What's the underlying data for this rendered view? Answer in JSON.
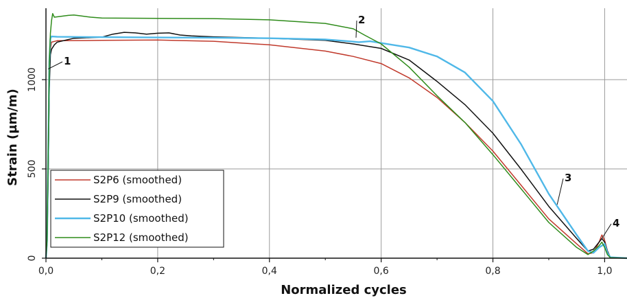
{
  "chart_data": {
    "type": "line",
    "xlabel": "Normalized cycles",
    "ylabel": "Strain (µm/m)",
    "xlim": [
      0,
      1.04
    ],
    "ylim": [
      0,
      1400
    ],
    "x_ticks": [
      "0,0",
      "0,2",
      "0,4",
      "0,6",
      "0,8",
      "1,0"
    ],
    "y_ticks": [
      "0",
      "500",
      "1000"
    ],
    "grid": true,
    "legend_position": "bottom-left",
    "series": [
      {
        "name": "S2P6 (smoothed)",
        "color": "#c0392b",
        "points": [
          [
            0.0,
            0
          ],
          [
            0.002,
            100
          ],
          [
            0.004,
            500
          ],
          [
            0.006,
            1000
          ],
          [
            0.008,
            1170
          ],
          [
            0.01,
            1210
          ],
          [
            0.02,
            1218
          ],
          [
            0.1,
            1220
          ],
          [
            0.2,
            1222
          ],
          [
            0.3,
            1215
          ],
          [
            0.4,
            1195
          ],
          [
            0.5,
            1160
          ],
          [
            0.55,
            1130
          ],
          [
            0.6,
            1090
          ],
          [
            0.65,
            1010
          ],
          [
            0.7,
            900
          ],
          [
            0.75,
            760
          ],
          [
            0.8,
            600
          ],
          [
            0.85,
            410
          ],
          [
            0.9,
            220
          ],
          [
            0.95,
            80
          ],
          [
            0.97,
            25
          ],
          [
            0.98,
            30
          ],
          [
            0.985,
            60
          ],
          [
            0.99,
            90
          ],
          [
            0.995,
            130
          ],
          [
            1.0,
            100
          ],
          [
            1.005,
            40
          ],
          [
            1.01,
            5
          ],
          [
            1.04,
            0
          ]
        ]
      },
      {
        "name": "S2P9 (smoothed)",
        "color": "#111111",
        "points": [
          [
            0.0,
            0
          ],
          [
            0.002,
            80
          ],
          [
            0.004,
            450
          ],
          [
            0.006,
            950
          ],
          [
            0.008,
            1140
          ],
          [
            0.01,
            1170
          ],
          [
            0.015,
            1195
          ],
          [
            0.02,
            1210
          ],
          [
            0.05,
            1232
          ],
          [
            0.1,
            1238
          ],
          [
            0.12,
            1255
          ],
          [
            0.14,
            1265
          ],
          [
            0.16,
            1262
          ],
          [
            0.18,
            1255
          ],
          [
            0.2,
            1260
          ],
          [
            0.22,
            1262
          ],
          [
            0.24,
            1250
          ],
          [
            0.26,
            1245
          ],
          [
            0.3,
            1240
          ],
          [
            0.4,
            1232
          ],
          [
            0.5,
            1220
          ],
          [
            0.55,
            1200
          ],
          [
            0.6,
            1175
          ],
          [
            0.65,
            1110
          ],
          [
            0.7,
            990
          ],
          [
            0.75,
            860
          ],
          [
            0.8,
            700
          ],
          [
            0.85,
            500
          ],
          [
            0.9,
            290
          ],
          [
            0.95,
            110
          ],
          [
            0.97,
            40
          ],
          [
            0.98,
            50
          ],
          [
            0.99,
            90
          ],
          [
            0.995,
            110
          ],
          [
            1.0,
            90
          ],
          [
            1.005,
            40
          ],
          [
            1.01,
            5
          ],
          [
            1.04,
            0
          ]
        ]
      },
      {
        "name": "S2P10 (smoothed)",
        "color": "#4fb8e8",
        "points": [
          [
            0.0,
            0
          ],
          [
            0.002,
            100
          ],
          [
            0.004,
            600
          ],
          [
            0.006,
            1100
          ],
          [
            0.008,
            1230
          ],
          [
            0.01,
            1242
          ],
          [
            0.02,
            1240
          ],
          [
            0.1,
            1238
          ],
          [
            0.2,
            1236
          ],
          [
            0.3,
            1235
          ],
          [
            0.4,
            1232
          ],
          [
            0.5,
            1225
          ],
          [
            0.53,
            1218
          ],
          [
            0.56,
            1210
          ],
          [
            0.58,
            1215
          ],
          [
            0.6,
            1205
          ],
          [
            0.65,
            1180
          ],
          [
            0.7,
            1130
          ],
          [
            0.75,
            1040
          ],
          [
            0.8,
            880
          ],
          [
            0.85,
            640
          ],
          [
            0.9,
            360
          ],
          [
            0.95,
            130
          ],
          [
            0.97,
            40
          ],
          [
            0.98,
            30
          ],
          [
            0.99,
            60
          ],
          [
            1.0,
            80
          ],
          [
            1.005,
            30
          ],
          [
            1.01,
            5
          ],
          [
            1.04,
            0
          ]
        ]
      },
      {
        "name": "S2P12 (smoothed)",
        "color": "#2e8b1a",
        "points": [
          [
            0.0,
            0
          ],
          [
            0.002,
            100
          ],
          [
            0.004,
            600
          ],
          [
            0.006,
            1100
          ],
          [
            0.008,
            1260
          ],
          [
            0.01,
            1330
          ],
          [
            0.012,
            1370
          ],
          [
            0.015,
            1350
          ],
          [
            0.02,
            1352
          ],
          [
            0.04,
            1360
          ],
          [
            0.05,
            1362
          ],
          [
            0.06,
            1358
          ],
          [
            0.08,
            1350
          ],
          [
            0.1,
            1345
          ],
          [
            0.2,
            1343
          ],
          [
            0.3,
            1342
          ],
          [
            0.4,
            1335
          ],
          [
            0.5,
            1315
          ],
          [
            0.55,
            1285
          ],
          [
            0.57,
            1250
          ],
          [
            0.6,
            1200
          ],
          [
            0.65,
            1070
          ],
          [
            0.7,
            910
          ],
          [
            0.75,
            760
          ],
          [
            0.8,
            580
          ],
          [
            0.85,
            390
          ],
          [
            0.9,
            200
          ],
          [
            0.95,
            60
          ],
          [
            0.97,
            20
          ],
          [
            0.98,
            40
          ],
          [
            0.99,
            70
          ],
          [
            0.995,
            90
          ],
          [
            1.0,
            60
          ],
          [
            1.005,
            20
          ],
          [
            1.01,
            3
          ],
          [
            1.04,
            0
          ]
        ]
      }
    ],
    "annotations": [
      {
        "label": "1",
        "x": 0.004,
        "y": 1060
      },
      {
        "label": "2",
        "x": 0.555,
        "y": 1235
      },
      {
        "label": "3",
        "x": 0.915,
        "y": 300
      },
      {
        "label": "4",
        "x": 0.995,
        "y": 110
      }
    ]
  }
}
